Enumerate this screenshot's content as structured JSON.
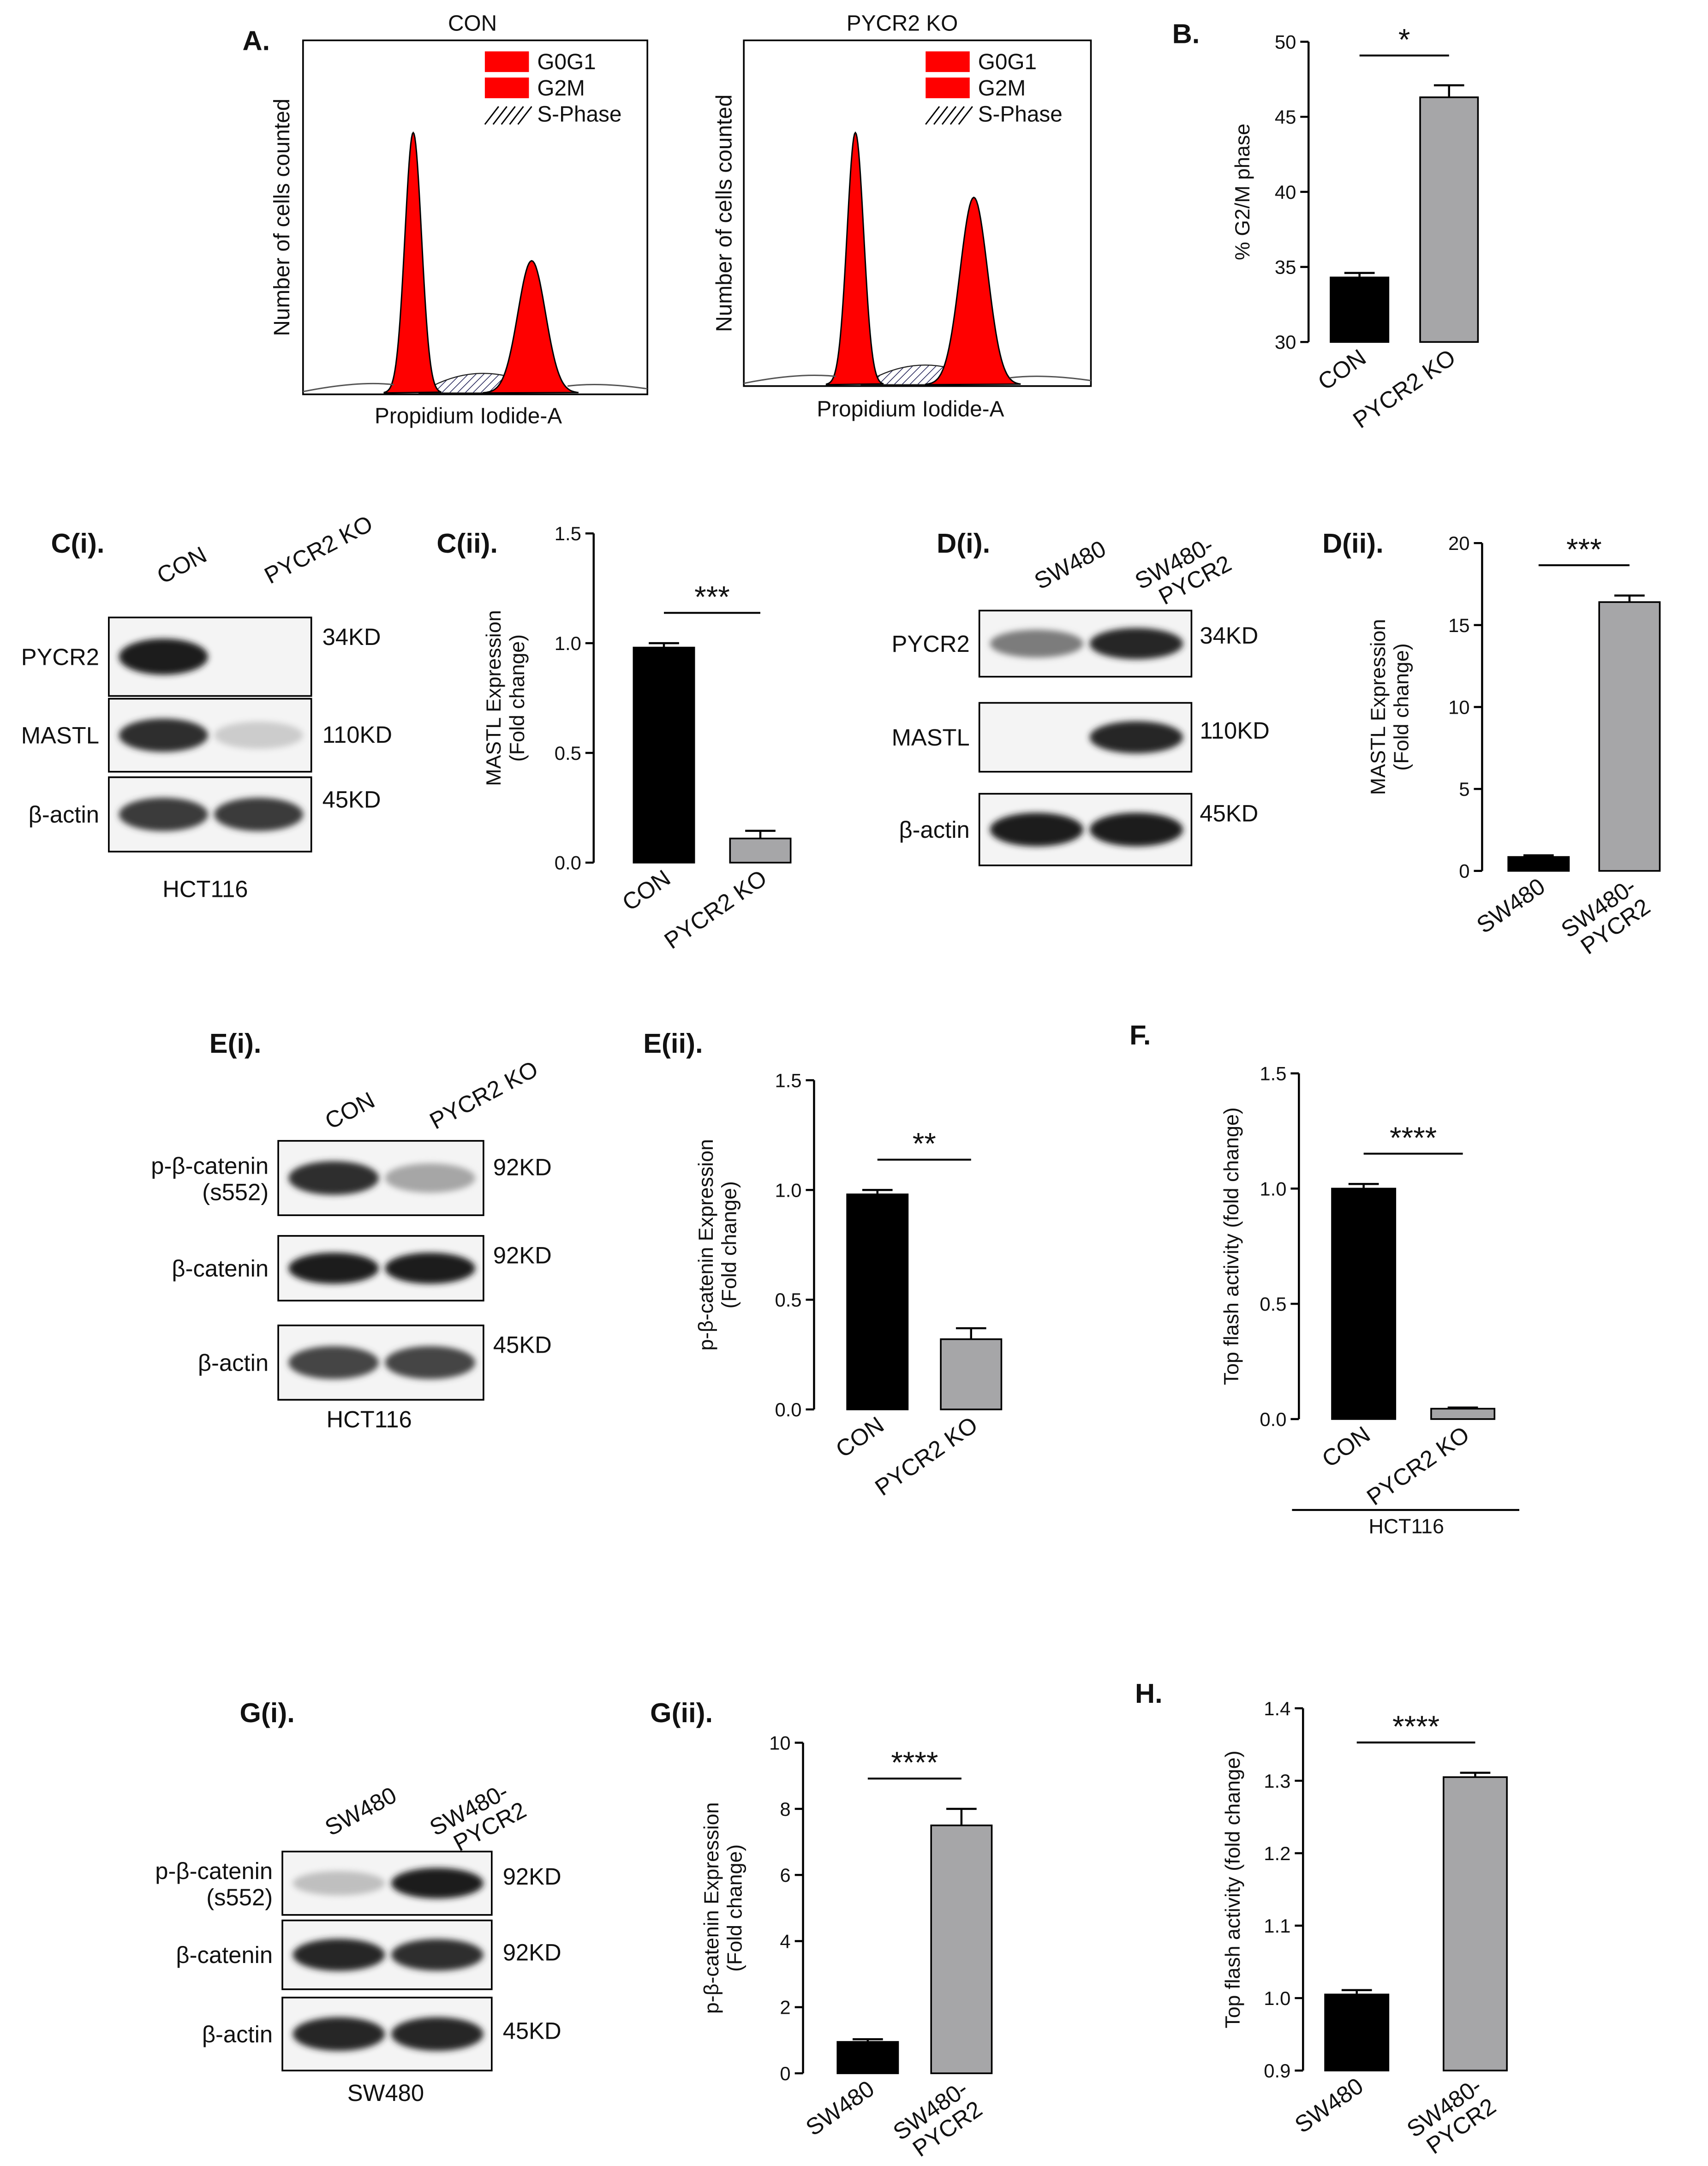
{
  "panel_labels": {
    "A": "A.",
    "B": "B.",
    "Ci": "C(i).",
    "Cii": "C(ii).",
    "Di": "D(i).",
    "Dii": "D(ii).",
    "Ei": "E(i).",
    "Eii": "E(ii).",
    "F": "F.",
    "Gi": "G(i).",
    "Gii": "G(ii).",
    "H": "H."
  },
  "flow": {
    "ylabel": "Number of cells counted",
    "xlabel": "Propidium Iodide-A",
    "legend": [
      "G0G1",
      "G2M",
      "S-Phase"
    ],
    "titles": [
      "CON",
      "PYCR2 KO"
    ],
    "colors": {
      "phase": "#ff0000",
      "sphase": "#3c3c7a"
    }
  },
  "blots": {
    "C": {
      "lanes": [
        "CON",
        "PYCR2 KO"
      ],
      "rows": [
        {
          "label": "PYCR2",
          "size": "34KD",
          "intensity": [
            0.95,
            0.0
          ]
        },
        {
          "label": "MASTL",
          "size": "110KD",
          "intensity": [
            0.85,
            0.12
          ]
        },
        {
          "label": "β-actin",
          "size": "45KD",
          "intensity": [
            0.8,
            0.8
          ]
        }
      ],
      "footer": "HCT116"
    },
    "D": {
      "lanes": [
        "SW480",
        [
          "SW480-",
          "PYCR2"
        ]
      ],
      "rows": [
        {
          "label": "PYCR2",
          "size": "34KD",
          "intensity": [
            0.5,
            0.9
          ]
        },
        {
          "label": "MASTL",
          "size": "110KD",
          "intensity": [
            0.0,
            0.9
          ]
        },
        {
          "label": "β-actin",
          "size": "45KD",
          "intensity": [
            0.95,
            0.95
          ]
        }
      ]
    },
    "E": {
      "lanes": [
        "CON",
        "PYCR2 KO"
      ],
      "rows": [
        {
          "label": [
            "p-β-catenin",
            "(s552)"
          ],
          "size": "92KD",
          "intensity": [
            0.85,
            0.3
          ]
        },
        {
          "label": "β-catenin",
          "size": "92KD",
          "intensity": [
            0.95,
            0.95
          ]
        },
        {
          "label": "β-actin",
          "size": "45KD",
          "intensity": [
            0.75,
            0.75
          ]
        }
      ],
      "footer": "HCT116"
    },
    "G": {
      "lanes": [
        "SW480",
        [
          "SW480-",
          "PYCR2"
        ]
      ],
      "rows": [
        {
          "label": [
            "p-β-catenin",
            "(s552)"
          ],
          "size": "92KD",
          "intensity": [
            0.18,
            0.95
          ]
        },
        {
          "label": "β-catenin",
          "size": "92KD",
          "intensity": [
            0.9,
            0.85
          ]
        },
        {
          "label": "β-actin",
          "size": "45KD",
          "intensity": [
            0.9,
            0.9
          ]
        }
      ],
      "footer": "SW480"
    }
  },
  "chart_data": [
    {
      "id": "B",
      "type": "bar",
      "categories": [
        "CON",
        "PYCR2 KO"
      ],
      "values": [
        34.3,
        46.3
      ],
      "errors": [
        0.3,
        0.8
      ],
      "ylabel": [
        "% G2/M phase"
      ],
      "ylim": [
        30,
        50
      ],
      "yticks": [
        30,
        35,
        40,
        45,
        50
      ],
      "ytick_labels": [
        "30",
        "35",
        "40",
        "45",
        "50"
      ],
      "significance": "*",
      "colors": [
        "#000000",
        "#a6a6a8"
      ]
    },
    {
      "id": "Cii",
      "type": "bar",
      "categories": [
        "CON",
        "PYCR2 KO"
      ],
      "values": [
        0.98,
        0.11
      ],
      "errors": [
        0.02,
        0.035
      ],
      "ylabel": [
        "MASTL Expression",
        "(Fold change)"
      ],
      "ylim": [
        0,
        1.5
      ],
      "yticks": [
        0,
        0.5,
        1.0,
        1.5
      ],
      "ytick_labels": [
        "0.0",
        "0.5",
        "1.0",
        "1.5"
      ],
      "significance": "***",
      "colors": [
        "#000000",
        "#a6a6a8"
      ]
    },
    {
      "id": "Dii",
      "type": "bar",
      "categories": [
        "SW480",
        "SW480-PYCR2"
      ],
      "values": [
        0.85,
        16.4
      ],
      "errors": [
        0.1,
        0.4
      ],
      "ylabel": [
        "MASTL Expression",
        "(Fold change)"
      ],
      "ylim": [
        0,
        20
      ],
      "yticks": [
        0,
        5,
        10,
        15,
        20
      ],
      "ytick_labels": [
        "0",
        "5",
        "10",
        "15",
        "20"
      ],
      "significance": "***",
      "colors": [
        "#000000",
        "#a6a6a8"
      ]
    },
    {
      "id": "Eii",
      "type": "bar",
      "categories": [
        "CON",
        "PYCR2 KO"
      ],
      "values": [
        0.98,
        0.32
      ],
      "errors": [
        0.02,
        0.05
      ],
      "ylabel": [
        "p-β-catenin Expression",
        "(Fold change)"
      ],
      "ylim": [
        0,
        1.5
      ],
      "yticks": [
        0,
        0.5,
        1.0,
        1.5
      ],
      "ytick_labels": [
        "0.0",
        "0.5",
        "1.0",
        "1.5"
      ],
      "significance": "**",
      "colors": [
        "#000000",
        "#a6a6a8"
      ]
    },
    {
      "id": "F",
      "type": "bar",
      "categories": [
        "CON",
        "PYCR2 KO"
      ],
      "values": [
        1.0,
        0.045
      ],
      "errors": [
        0.02,
        0.005
      ],
      "ylabel": [
        "Top flash activity (fold change)"
      ],
      "ylim": [
        0,
        1.5
      ],
      "yticks": [
        0,
        0.5,
        1.0,
        1.5
      ],
      "ytick_labels": [
        "0.0",
        "0.5",
        "1.0",
        "1.5"
      ],
      "significance": "****",
      "group_label": "HCT116",
      "colors": [
        "#000000",
        "#a6a6a8"
      ]
    },
    {
      "id": "Gii",
      "type": "bar",
      "categories": [
        "SW480",
        "SW480-PYCR2"
      ],
      "values": [
        0.95,
        7.5
      ],
      "errors": [
        0.08,
        0.5
      ],
      "ylabel": [
        "p-β-catenin Expression",
        "(Fold change)"
      ],
      "ylim": [
        0,
        10
      ],
      "yticks": [
        0,
        2,
        4,
        6,
        8,
        10
      ],
      "ytick_labels": [
        "0",
        "2",
        "4",
        "6",
        "8",
        "10"
      ],
      "significance": "****",
      "colors": [
        "#000000",
        "#a6a6a8"
      ]
    },
    {
      "id": "H",
      "type": "bar",
      "categories": [
        "SW480",
        "SW480-PYCR2"
      ],
      "values": [
        1.005,
        1.305
      ],
      "errors": [
        0.006,
        0.006
      ],
      "ylabel": [
        "Top flash activity (fold change)"
      ],
      "ylim": [
        0.9,
        1.4
      ],
      "yticks": [
        0.9,
        1.0,
        1.1,
        1.2,
        1.3,
        1.4
      ],
      "ytick_labels": [
        "0.9",
        "1.0",
        "1.1",
        "1.2",
        "1.3",
        "1.4"
      ],
      "significance": "****",
      "colors": [
        "#000000",
        "#a6a6a8"
      ]
    }
  ]
}
